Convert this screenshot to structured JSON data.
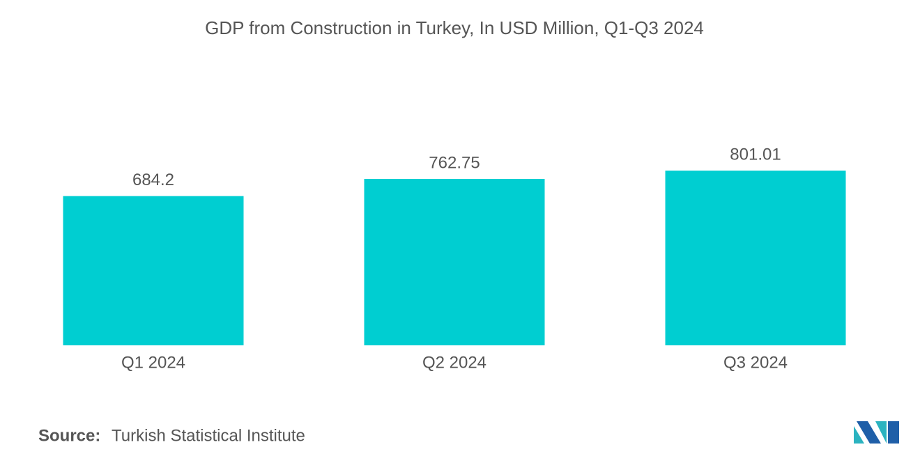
{
  "chart_data": {
    "type": "bar",
    "title": "GDP from Construction in Turkey, In USD Million, Q1-Q3 2024",
    "categories": [
      "Q1 2024",
      "Q2 2024",
      "Q3 2024"
    ],
    "values": [
      684.2,
      762.75,
      801.01
    ],
    "color": "#00ced1",
    "source": {
      "label": "Source:",
      "text": "Turkish Statistical Institute"
    }
  }
}
